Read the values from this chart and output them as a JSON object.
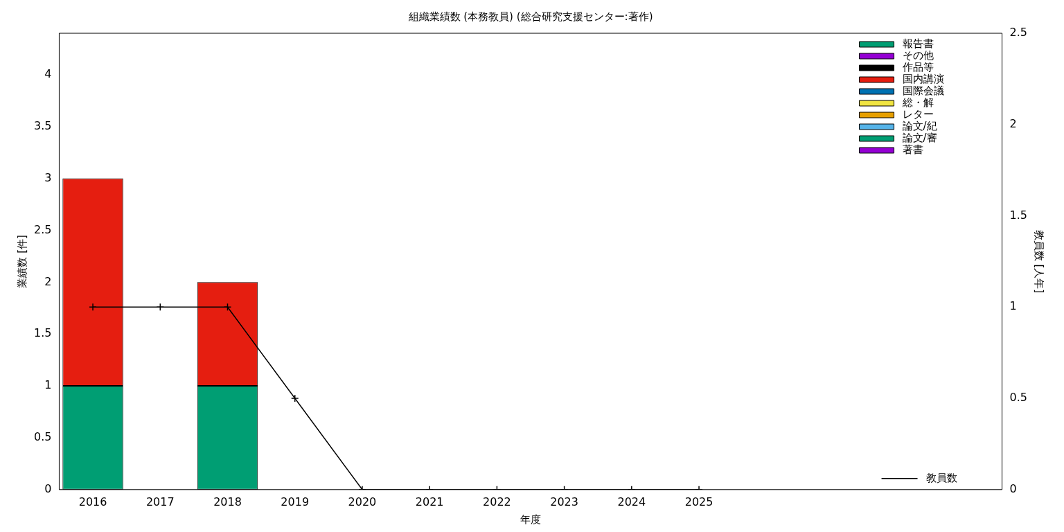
{
  "chart_data": {
    "type": "bar",
    "title": "組織業績数 (本務教員) (総合研究支援センター:著作)",
    "xlabel": "年度",
    "ylabel": "業績数 [件]",
    "y2label": "教員数 [人年]",
    "categories": [
      "2016",
      "2017",
      "2018",
      "2019",
      "2020",
      "2021",
      "2022",
      "2023",
      "2024",
      "2025",
      null,
      null,
      null,
      null
    ],
    "stacked": true,
    "legend": "top right",
    "grid": false,
    "ylim": [
      0,
      4.4
    ],
    "yticks": [
      0,
      0.5,
      1,
      1.5,
      2,
      2.5,
      3,
      3.5,
      4
    ],
    "y2lim": [
      0,
      2.5
    ],
    "y2ticks": [
      0,
      0.5,
      1,
      1.5,
      2,
      2.5
    ],
    "series": [
      {
        "name": "著書",
        "color": "#9400d3",
        "values": [
          0,
          0,
          0,
          0,
          0,
          0,
          0,
          0,
          0,
          0,
          null,
          null,
          null,
          null
        ]
      },
      {
        "name": "論文/審",
        "color": "#009e73",
        "values": [
          1,
          0,
          1,
          0,
          0,
          0,
          0,
          0,
          0,
          0,
          null,
          null,
          null,
          null
        ]
      },
      {
        "name": "論文/紀",
        "color": "#56b4e9",
        "values": [
          0,
          0,
          0,
          0,
          0,
          0,
          0,
          0,
          0,
          0,
          null,
          null,
          null,
          null
        ]
      },
      {
        "name": "レター",
        "color": "#e69f00",
        "values": [
          0,
          0,
          0,
          0,
          0,
          0,
          0,
          0,
          0,
          0,
          null,
          null,
          null,
          null
        ]
      },
      {
        "name": "総・解",
        "color": "#f0e442",
        "values": [
          0,
          0,
          0,
          0,
          0,
          0,
          0,
          0,
          0,
          0,
          null,
          null,
          null,
          null
        ]
      },
      {
        "name": "国際会議",
        "color": "#0072b2",
        "values": [
          0,
          0,
          0,
          0,
          0,
          0,
          0,
          0,
          0,
          0,
          null,
          null,
          null,
          null
        ]
      },
      {
        "name": "国内講演",
        "color": "#e51e10",
        "values": [
          2,
          0,
          1,
          0,
          0,
          0,
          0,
          0,
          0,
          0,
          null,
          null,
          null,
          null
        ]
      },
      {
        "name": "作品等",
        "color": "#000000",
        "values": [
          0,
          0,
          0,
          0,
          0,
          0,
          0,
          0,
          0,
          0,
          null,
          null,
          null,
          null
        ]
      },
      {
        "name": "その他",
        "color": "#9400d3",
        "values": [
          0,
          0,
          0,
          0,
          0,
          0,
          0,
          0,
          0,
          0,
          null,
          null,
          null,
          null
        ]
      },
      {
        "name": "報告書",
        "color": "#009e73",
        "values": [
          0,
          0,
          0,
          0,
          0,
          0,
          0,
          0,
          0,
          0,
          null,
          null,
          null,
          null
        ]
      },
      {
        "name": "教員数",
        "type": "line",
        "axis": "y2",
        "color": "#000000",
        "marker": "cross",
        "values": [
          1,
          1,
          1,
          0.5,
          0,
          0,
          0,
          0,
          0,
          0,
          null,
          null,
          null,
          null
        ]
      }
    ]
  }
}
